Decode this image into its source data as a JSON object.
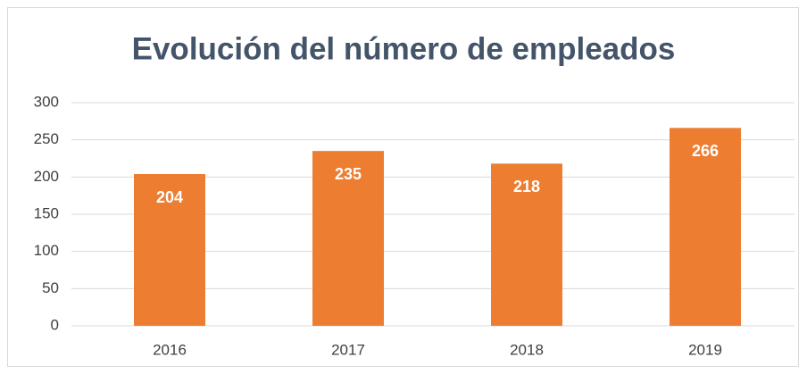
{
  "chart_data": {
    "type": "bar",
    "title": "Evolución del número de empleados",
    "categories": [
      "2016",
      "2017",
      "2018",
      "2019"
    ],
    "values": [
      204,
      235,
      218,
      266
    ],
    "color": "#ed7d31",
    "ylim": [
      0,
      300
    ],
    "yticks": [
      0,
      50,
      100,
      150,
      200,
      250,
      300
    ],
    "grid": true
  }
}
